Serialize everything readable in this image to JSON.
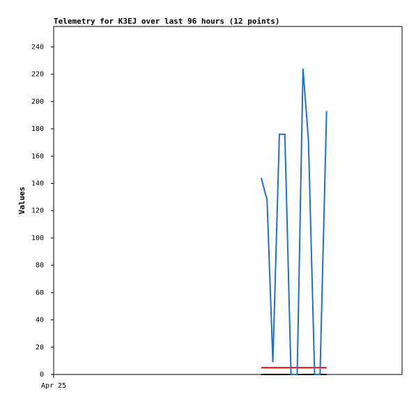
{
  "chart_data": {
    "type": "line",
    "title": "Telemetry for K3EJ over last 96 hours (12 points)",
    "y_label": "Values",
    "x": [
      57.2,
      58.8,
      60.4,
      62.2,
      63.7,
      65.4,
      67.1,
      68.7,
      70.2,
      71.9,
      73.4,
      75.2
    ],
    "series": [
      {
        "color": "#1f6fd1",
        "values": [
          144,
          128,
          9,
          176,
          176,
          0,
          0,
          224,
          172,
          0,
          0,
          193
        ]
      },
      {
        "color": "#ff0000",
        "values": [
          5,
          5,
          5,
          5,
          5,
          5,
          5,
          5,
          5,
          5,
          5,
          5
        ]
      },
      {
        "color": "#000000",
        "values": [
          0,
          0,
          0,
          0,
          0,
          0,
          0,
          0,
          0,
          0,
          0,
          0
        ]
      }
    ],
    "xlim": [
      0,
      96
    ],
    "xticks": [
      {
        "value": 0,
        "label": "Apr 25"
      }
    ],
    "ylim": [
      0,
      255
    ],
    "yticks": [
      0,
      20,
      40,
      60,
      80,
      100,
      120,
      140,
      160,
      180,
      200,
      220,
      240
    ]
  }
}
